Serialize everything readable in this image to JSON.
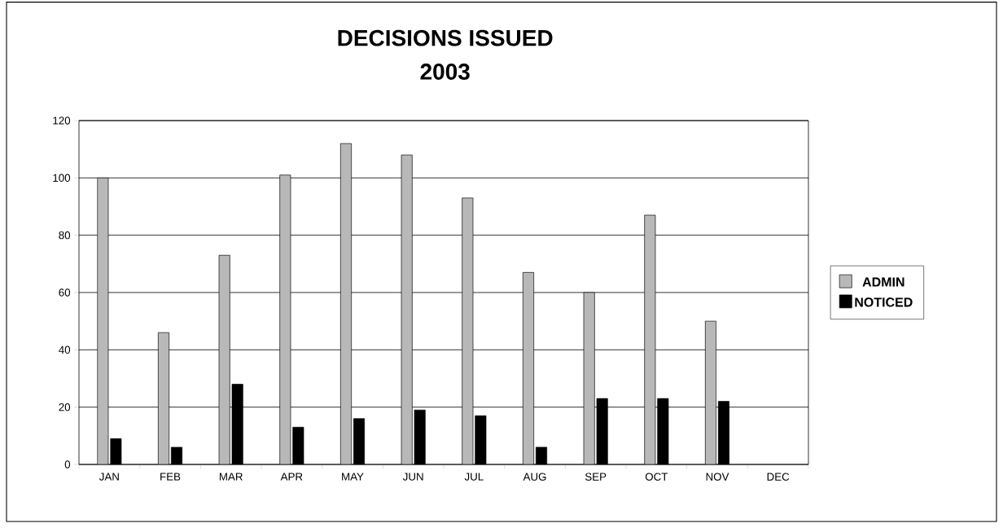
{
  "chart_data": {
    "type": "bar",
    "title": "DECISIONS ISSUED",
    "subtitle": "2003",
    "categories": [
      "JAN",
      "FEB",
      "MAR",
      "APR",
      "MAY",
      "JUN",
      "JUL",
      "AUG",
      "SEP",
      "OCT",
      "NOV",
      "DEC"
    ],
    "series": [
      {
        "name": "ADMIN",
        "color": "#b8b8b8",
        "values": [
          100,
          46,
          73,
          101,
          112,
          108,
          93,
          67,
          60,
          87,
          50,
          null
        ]
      },
      {
        "name": "NOTICED",
        "color": "#000000",
        "values": [
          9,
          6,
          28,
          13,
          16,
          19,
          17,
          6,
          23,
          23,
          22,
          null
        ]
      }
    ],
    "ylim": [
      0,
      120
    ],
    "yticks": [
      0,
      20,
      40,
      60,
      80,
      100,
      120
    ],
    "grid": "y",
    "legend": "right"
  }
}
